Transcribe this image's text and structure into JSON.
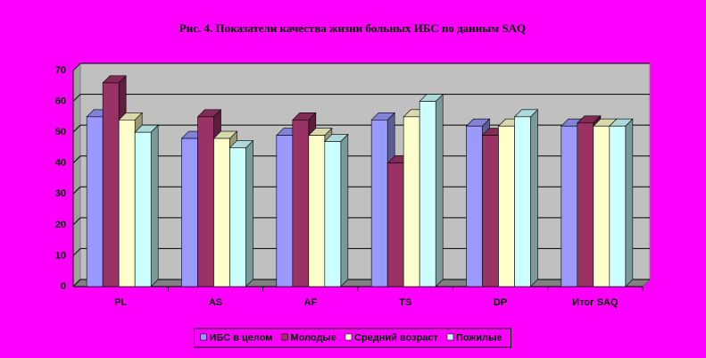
{
  "chart_data": {
    "type": "bar3d",
    "title": "Рис. 4. Показатели качества жизни больных ИБС по данным SAQ",
    "categories": [
      "PL",
      "AS",
      "AF",
      "TS",
      "DP",
      "Итог SAQ"
    ],
    "series": [
      {
        "name": "ИБС в целом",
        "color": "#9999ff",
        "values": [
          55,
          48,
          49,
          54,
          52,
          52
        ]
      },
      {
        "name": "Молодые",
        "color": "#993366",
        "values": [
          66,
          55,
          54,
          40,
          49,
          53
        ]
      },
      {
        "name": "Средний возраст",
        "color": "#ffffcc",
        "values": [
          54,
          48,
          49,
          55,
          52,
          52
        ]
      },
      {
        "name": "Пожилые",
        "color": "#ccffff",
        "values": [
          50,
          45,
          47,
          60,
          55,
          52
        ]
      }
    ],
    "ylim": [
      0,
      70
    ],
    "yticks": [
      0,
      10,
      20,
      30,
      40,
      50,
      60,
      70
    ],
    "grid": true,
    "legend": "bottom"
  }
}
